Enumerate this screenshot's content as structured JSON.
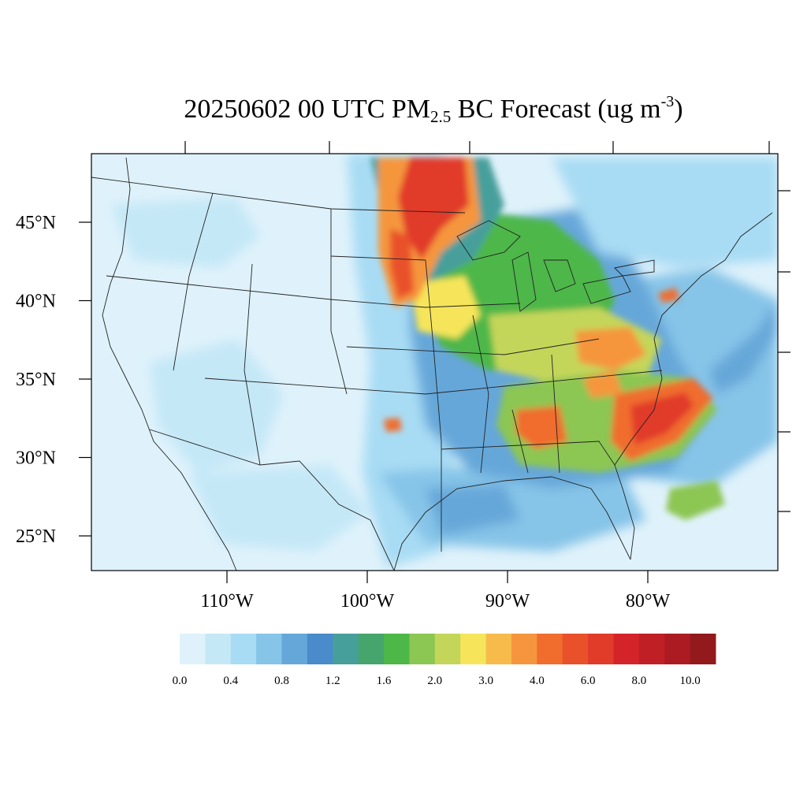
{
  "title": {
    "date": "20250602",
    "hour": "00",
    "tz": "UTC",
    "pm": "PM",
    "pm_sub": "2.5",
    "species": "BC Forecast",
    "unit_open": "(ug m",
    "unit_sup": "-3",
    "unit_close": ")"
  },
  "axes": {
    "lat_ticks": [
      {
        "label": "45°N",
        "lat": 45
      },
      {
        "label": "40°N",
        "lat": 40
      },
      {
        "label": "35°N",
        "lat": 35
      },
      {
        "label": "30°N",
        "lat": 30
      },
      {
        "label": "25°N",
        "lat": 25
      }
    ],
    "lon_ticks": [
      {
        "label": "110°W",
        "lon": -110
      },
      {
        "label": "100°W",
        "lon": -100
      },
      {
        "label": "90°W",
        "lon": -90
      },
      {
        "label": "80°W",
        "lon": -80
      }
    ]
  },
  "colorbar": {
    "colors": [
      "#dff2fb",
      "#c5e8f7",
      "#a8dcf4",
      "#86c4e8",
      "#66a7d9",
      "#4a8bcb",
      "#479f9c",
      "#46a56d",
      "#4db748",
      "#8cc653",
      "#c4d65a",
      "#f6e55a",
      "#f7bb4b",
      "#f5963e",
      "#f06d2d",
      "#e9512b",
      "#e13b2a",
      "#d42429",
      "#c11f26",
      "#ad1b22",
      "#921a1d"
    ],
    "labels": [
      "0.0",
      "0.4",
      "0.8",
      "1.2",
      "1.6",
      "2.0",
      "3.0",
      "4.0",
      "6.0",
      "8.0",
      "10.0"
    ]
  }
}
